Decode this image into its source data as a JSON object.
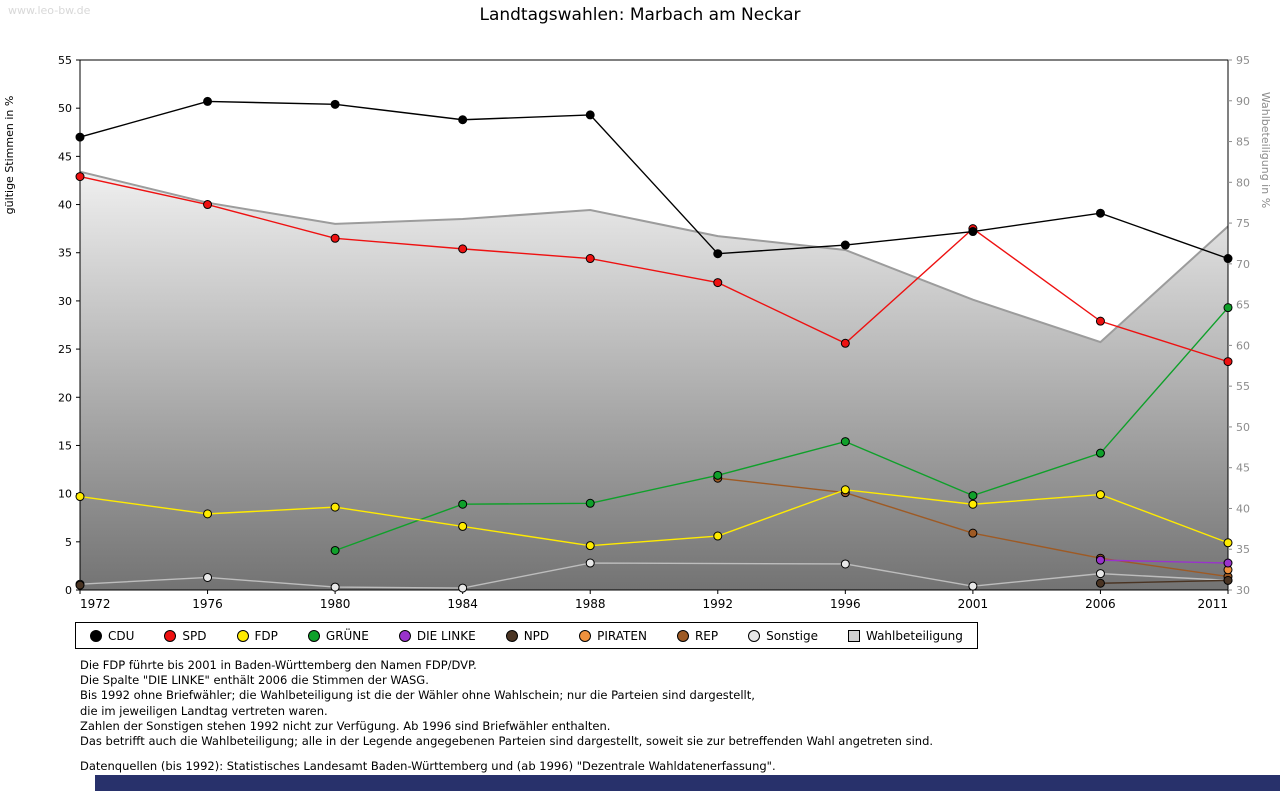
{
  "page": {
    "watermark": "www.leo-bw.de",
    "title": "Landtagswahlen: Marbach am Neckar",
    "footnotes": [
      "Die FDP führte bis 2001 in Baden-Württemberg den Namen FDP/DVP.",
      "Die Spalte \"DIE LINKE\" enthält 2006 die Stimmen der WASG.",
      "Bis 1992 ohne Briefwähler; die Wahlbeteiligung ist die der Wähler ohne Wahlschein; nur die Parteien sind dargestellt,",
      "die im jeweiligen Landtag vertreten waren.",
      "Zahlen der Sonstigen stehen 1992 nicht zur Verfügung. Ab 1996 sind Briefwähler enthalten.",
      "Das betrifft auch die Wahlbeteiligung; alle in der Legende angegebenen Parteien sind dargestellt, soweit sie zur betreffenden Wahl angetreten sind."
    ],
    "source_line": "Datenquellen (bis 1992): Statistisches Landesamt Baden-Württemberg und (ab 1996) \"Dezentrale Wahldatenerfassung\"."
  },
  "chart_data": {
    "type": "line",
    "title": "Landtagswahlen: Marbach am Neckar",
    "x_categories": [
      "1972",
      "1976",
      "1980",
      "1984",
      "1988",
      "1992",
      "1996",
      "2001",
      "2006",
      "2011"
    ],
    "y_left": {
      "label": "gültige Stimmen in %",
      "min": 0,
      "max": 55,
      "tick_step": 5
    },
    "y_right": {
      "label": "Wahlbeteiligung in %",
      "min": 30,
      "max": 95,
      "tick_step": 5
    },
    "grid": false,
    "legend_position": "bottom",
    "area_fill_top": "#f0f0f0",
    "area_fill_bottom": "#737373",
    "legend_area_swatch": "#d2d2d2",
    "series": [
      {
        "name": "CDU",
        "color": "#000000",
        "axis": "left",
        "type": "line",
        "values": [
          47.0,
          50.7,
          50.4,
          48.8,
          49.3,
          34.9,
          35.8,
          37.2,
          39.1,
          34.4
        ]
      },
      {
        "name": "SPD",
        "color": "#ee1111",
        "axis": "left",
        "type": "line",
        "values": [
          42.9,
          40.0,
          36.5,
          35.4,
          34.4,
          31.9,
          25.6,
          37.5,
          27.9,
          23.7
        ]
      },
      {
        "name": "FDP",
        "color": "#ffeb00",
        "axis": "left",
        "type": "line",
        "values": [
          9.7,
          7.9,
          8.6,
          6.6,
          4.6,
          5.6,
          10.4,
          8.9,
          9.9,
          4.9
        ]
      },
      {
        "name": "GRÜNE",
        "color": "#0fa02a",
        "axis": "left",
        "type": "line",
        "values": [
          null,
          null,
          4.1,
          8.9,
          9.0,
          11.9,
          15.4,
          9.8,
          14.2,
          29.3
        ]
      },
      {
        "name": "DIE LINKE",
        "color": "#9933cc",
        "axis": "left",
        "type": "line",
        "values": [
          null,
          null,
          null,
          null,
          null,
          null,
          null,
          null,
          3.1,
          2.8
        ]
      },
      {
        "name": "NPD",
        "color": "#4a3423",
        "axis": "left",
        "type": "line",
        "connect_gaps": false,
        "values": [
          0.5,
          null,
          null,
          null,
          null,
          null,
          null,
          null,
          0.7,
          1.0
        ]
      },
      {
        "name": "PIRATEN",
        "color": "#ef913d",
        "axis": "left",
        "type": "line",
        "values": [
          null,
          null,
          null,
          null,
          null,
          null,
          null,
          null,
          null,
          2.1
        ]
      },
      {
        "name": "REP",
        "color": "#9e5a24",
        "axis": "left",
        "type": "line",
        "values": [
          null,
          null,
          null,
          null,
          null,
          11.6,
          10.1,
          5.9,
          3.3,
          1.4
        ]
      },
      {
        "name": "Sonstige",
        "color": "#bdbdbd",
        "marker_fill": "#e8e8e8",
        "axis": "left",
        "type": "line",
        "connect_gaps": true,
        "values": [
          0.6,
          1.3,
          0.3,
          0.2,
          2.8,
          null,
          2.7,
          0.4,
          1.7,
          1.0
        ]
      },
      {
        "name": "Wahlbeteiligung",
        "color": "#9c9c9c",
        "axis": "right",
        "type": "area",
        "values": [
          81.3,
          77.5,
          74.9,
          75.5,
          76.6,
          73.4,
          71.7,
          65.6,
          60.4,
          74.6
        ]
      }
    ]
  }
}
